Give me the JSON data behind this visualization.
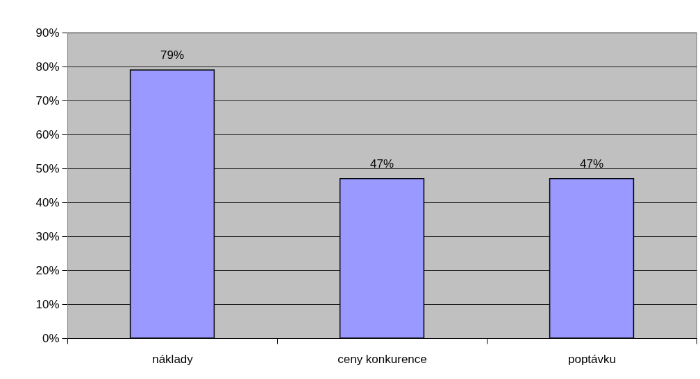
{
  "chart_data": {
    "type": "bar",
    "categories": [
      "náklady",
      "ceny konkurence",
      "poptávku"
    ],
    "values": [
      79,
      47,
      47
    ],
    "color": "#9999ff",
    "value_labels": [
      "79%",
      "47%",
      "47%"
    ],
    "ylim": [
      0,
      90
    ],
    "yticks": [
      {
        "value": 0,
        "label": "0%"
      },
      {
        "value": 10,
        "label": "10%"
      },
      {
        "value": 20,
        "label": "20%"
      },
      {
        "value": 30,
        "label": "30%"
      },
      {
        "value": 40,
        "label": "40%"
      },
      {
        "value": 50,
        "label": "50%"
      },
      {
        "value": 60,
        "label": "60%"
      },
      {
        "value": 70,
        "label": "70%"
      },
      {
        "value": 80,
        "label": "80%"
      },
      {
        "value": 90,
        "label": "90%"
      }
    ],
    "grid": "y"
  }
}
